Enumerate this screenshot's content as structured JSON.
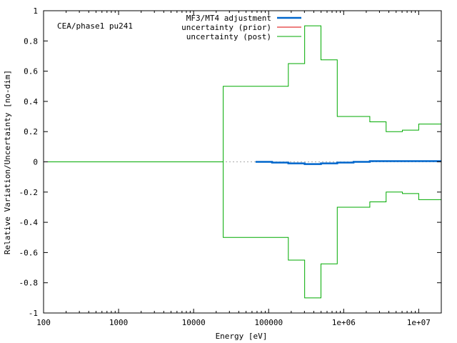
{
  "chart_data": {
    "type": "line",
    "annotation": "CEA/phase1 pu241",
    "xlabel": "Energy [eV]",
    "ylabel": "Relative Variation/Uncertainty [no-dim]",
    "x_scale": "log",
    "xlim": [
      100,
      20000000
    ],
    "ylim": [
      -1,
      1
    ],
    "x_ticks": [
      {
        "value": 100,
        "label": "100"
      },
      {
        "value": 1000,
        "label": "1000"
      },
      {
        "value": 10000,
        "label": "10000"
      },
      {
        "value": 100000,
        "label": "100000"
      },
      {
        "value": 1000000,
        "label": "1e+06"
      },
      {
        "value": 10000000,
        "label": "1e+07"
      }
    ],
    "y_ticks": [
      {
        "value": 1,
        "label": "1"
      },
      {
        "value": 0.8,
        "label": "0.8"
      },
      {
        "value": 0.6,
        "label": "0.6"
      },
      {
        "value": 0.4,
        "label": "0.4"
      },
      {
        "value": 0.2,
        "label": "0.2"
      },
      {
        "value": 0,
        "label": "0"
      },
      {
        "value": -0.2,
        "label": "-0.2"
      },
      {
        "value": -0.4,
        "label": "-0.4"
      },
      {
        "value": -0.6,
        "label": "-0.6"
      },
      {
        "value": -0.8,
        "label": "-0.8"
      },
      {
        "value": -1,
        "label": "-1"
      }
    ],
    "legend_position": "top-center",
    "zero_line": "dotted",
    "series": [
      {
        "name": "MF3/MT4 adjustment",
        "color": "#0066cc",
        "style": "step",
        "edges": [
          67000,
          111000,
          183000,
          302000,
          498000,
          821000,
          1353000,
          2231000,
          3679000,
          6065000,
          10000000,
          20000000
        ],
        "values": [
          0.0,
          -0.005,
          -0.01,
          -0.015,
          -0.01,
          -0.005,
          0.0,
          0.005,
          0.005,
          0.005,
          0.005
        ]
      },
      {
        "name": "uncertainty (prior)",
        "color": "#dd0000",
        "style": "step",
        "edges": [],
        "values": []
      },
      {
        "name": "uncertainty (post)",
        "color": "#00aa00",
        "style": "step-symmetric",
        "edges": [
          100,
          24800,
          183000,
          302000,
          498000,
          821000,
          2231000,
          3679000,
          6065000,
          10000000,
          20000000
        ],
        "values": [
          0.0,
          0.5,
          0.65,
          0.9,
          0.675,
          0.3,
          0.265,
          0.2,
          0.21,
          0.25
        ]
      }
    ]
  }
}
